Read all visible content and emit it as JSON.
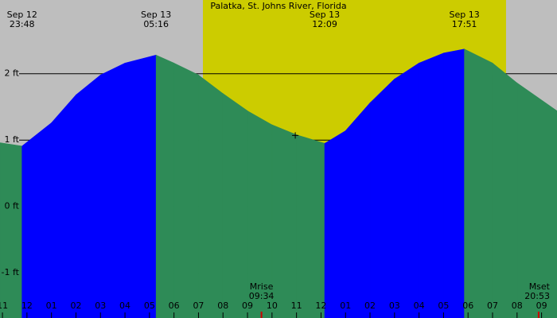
{
  "chart_data": {
    "type": "tide",
    "title": "Palatka, St. Johns River, Florida",
    "background_color": "#bebebe",
    "daylight_color": "#cccc00",
    "daylight": [
      31.18,
      43.55
    ],
    "rising_color": "#0000ff",
    "falling_color": "#2e8b57",
    "xlim": [
      22.9,
      45.63
    ],
    "ylim": [
      -1.68,
      3.11
    ],
    "yticks": [
      {
        "value": 2,
        "label": "2 ft"
      },
      {
        "value": 1,
        "label": "1 ft"
      },
      {
        "value": 0,
        "label": "0 ft"
      },
      {
        "value": -1,
        "label": "-1 ft"
      }
    ],
    "xticks": [
      {
        "value": 23,
        "label": "11"
      },
      {
        "value": 24,
        "label": "12"
      },
      {
        "value": 25,
        "label": "01"
      },
      {
        "value": 26,
        "label": "02"
      },
      {
        "value": 27,
        "label": "03"
      },
      {
        "value": 28,
        "label": "04"
      },
      {
        "value": 29,
        "label": "05"
      },
      {
        "value": 30,
        "label": "06"
      },
      {
        "value": 31,
        "label": "07"
      },
      {
        "value": 32,
        "label": "08"
      },
      {
        "value": 33,
        "label": "09"
      },
      {
        "value": 34,
        "label": "10"
      },
      {
        "value": 35,
        "label": "11"
      },
      {
        "value": 36,
        "label": "12"
      },
      {
        "value": 37,
        "label": "01"
      },
      {
        "value": 38,
        "label": "02"
      },
      {
        "value": 39,
        "label": "03"
      },
      {
        "value": 40,
        "label": "04"
      },
      {
        "value": 41,
        "label": "05"
      },
      {
        "value": 42,
        "label": "06"
      },
      {
        "value": 43,
        "label": "07"
      },
      {
        "value": 44,
        "label": "08"
      },
      {
        "value": 45,
        "label": "09"
      }
    ],
    "x": [
      22.9,
      23.8,
      25,
      26,
      27,
      28,
      29.27,
      30,
      31,
      32,
      33,
      34,
      35,
      36.15,
      37,
      38,
      39,
      40,
      41,
      41.85,
      43,
      44,
      45.63
    ],
    "values": [
      0.96,
      0.91,
      1.26,
      1.68,
      1.98,
      2.16,
      2.28,
      2.16,
      1.98,
      1.7,
      1.44,
      1.23,
      1.08,
      0.95,
      1.14,
      1.56,
      1.92,
      2.16,
      2.31,
      2.37,
      2.16,
      1.86,
      1.44
    ],
    "events": [
      {
        "date": "Sep 12",
        "time": "23:48",
        "x": 23.8
      },
      {
        "date": "Sep 13",
        "time": "05:16",
        "x": 29.27
      },
      {
        "date": "Sep 13",
        "time": "12:09",
        "x": 36.15
      },
      {
        "date": "Sep 13",
        "time": "17:51",
        "x": 41.85
      }
    ],
    "moon": [
      {
        "label": "Mrise",
        "time": "09:34",
        "x": 33.57
      },
      {
        "label": "Mset",
        "time": "20:53",
        "x": 44.88
      }
    ],
    "marker": {
      "x": 34.95,
      "value": 1.07
    }
  }
}
